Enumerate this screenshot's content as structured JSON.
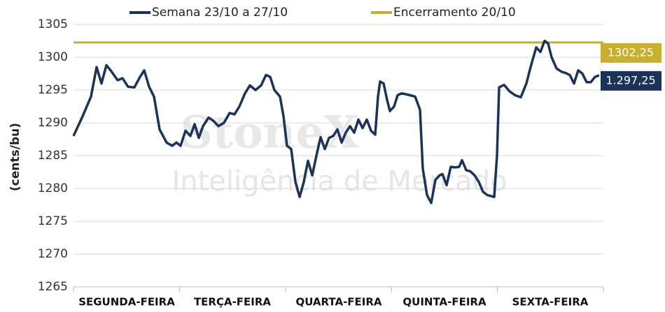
{
  "chart_data": {
    "type": "line",
    "y_label": "(cents/bu)",
    "watermark": {
      "brand": "StoneX",
      "tagline": "Inteligência de Mercado"
    },
    "xlim": [
      0,
      757
    ],
    "xticks": [
      {
        "value": 76,
        "label": "SEGUNDA-FEIRA"
      },
      {
        "value": 227,
        "label": "TERÇA-FEIRA"
      },
      {
        "value": 379,
        "label": "QUARTA-FEIRA"
      },
      {
        "value": 530,
        "label": "QUINTA-FEIRA"
      },
      {
        "value": 681,
        "label": "SEXTA-FEIRA"
      }
    ],
    "ylim": [
      1265,
      1305
    ],
    "yticks": [
      1265,
      1270,
      1275,
      1280,
      1285,
      1290,
      1295,
      1300,
      1305
    ],
    "grid": true,
    "series": [
      {
        "name": "Semana 23/10 a 27/10",
        "color": "#1b3358",
        "end_label": "1.297,25",
        "x": [
          0,
          13,
          25,
          33,
          40,
          47,
          53,
          63,
          70,
          78,
          87,
          95,
          101,
          108,
          115,
          123,
          133,
          141,
          147,
          153,
          160,
          167,
          173,
          179,
          185,
          193,
          200,
          207,
          215,
          223,
          230,
          237,
          245,
          252,
          260,
          268,
          275,
          281,
          287,
          295,
          300,
          305,
          311,
          317,
          323,
          329,
          335,
          341,
          347,
          353,
          359,
          365,
          371,
          377,
          383,
          389,
          395,
          401,
          407,
          413,
          419,
          425,
          431,
          435,
          438,
          443,
          448,
          452,
          458,
          463,
          469,
          481,
          488,
          495,
          499,
          505,
          511,
          517,
          523,
          527,
          533,
          539,
          545,
          551,
          555,
          561,
          567,
          573,
          579,
          585,
          591,
          601,
          605,
          608,
          615,
          623,
          631,
          639,
          647,
          653,
          661,
          667,
          673,
          678,
          683,
          690,
          697,
          703,
          709,
          715,
          721,
          727,
          733,
          739,
          745,
          751
        ],
        "values": [
          1288,
          1291,
          1294,
          1298.5,
          1296,
          1298.8,
          1298,
          1296.5,
          1296.8,
          1295.5,
          1295.4,
          1297,
          1298,
          1295.5,
          1294,
          1289,
          1287,
          1286.5,
          1287,
          1286.5,
          1288.8,
          1288,
          1289.8,
          1287.7,
          1289.5,
          1290.8,
          1290.3,
          1289.5,
          1290,
          1291.5,
          1291.3,
          1292.5,
          1294.5,
          1295.7,
          1295,
          1295.7,
          1297.3,
          1297,
          1295,
          1294,
          1291,
          1286.5,
          1286,
          1281,
          1278.7,
          1281,
          1284.2,
          1282,
          1285,
          1287.8,
          1286,
          1287.7,
          1288,
          1289,
          1287,
          1288.5,
          1289.5,
          1288.5,
          1290.5,
          1289.2,
          1290.5,
          1288.8,
          1288.2,
          1294,
          1296.3,
          1296,
          1293.5,
          1291.8,
          1292.5,
          1294.2,
          1294.5,
          1294.2,
          1294,
          1292,
          1283,
          1279,
          1277.8,
          1281.3,
          1282,
          1282.2,
          1280.5,
          1283.3,
          1283.2,
          1283.3,
          1284.3,
          1282.8,
          1282.6,
          1282,
          1281,
          1279.5,
          1279,
          1278.7,
          1285,
          1295.4,
          1295.8,
          1294.8,
          1294.2,
          1293.9,
          1296,
          1298.5,
          1301.5,
          1300.8,
          1302.5,
          1302.1,
          1300,
          1298.3,
          1297.8,
          1297.6,
          1297.3,
          1296,
          1298,
          1297.5,
          1296.2,
          1296.2,
          1297,
          1297.25
        ]
      }
    ],
    "reference": {
      "name": "Encerramento 20/10",
      "color": "#c9ae30",
      "value": 1302.25,
      "label": "1302,25"
    }
  }
}
